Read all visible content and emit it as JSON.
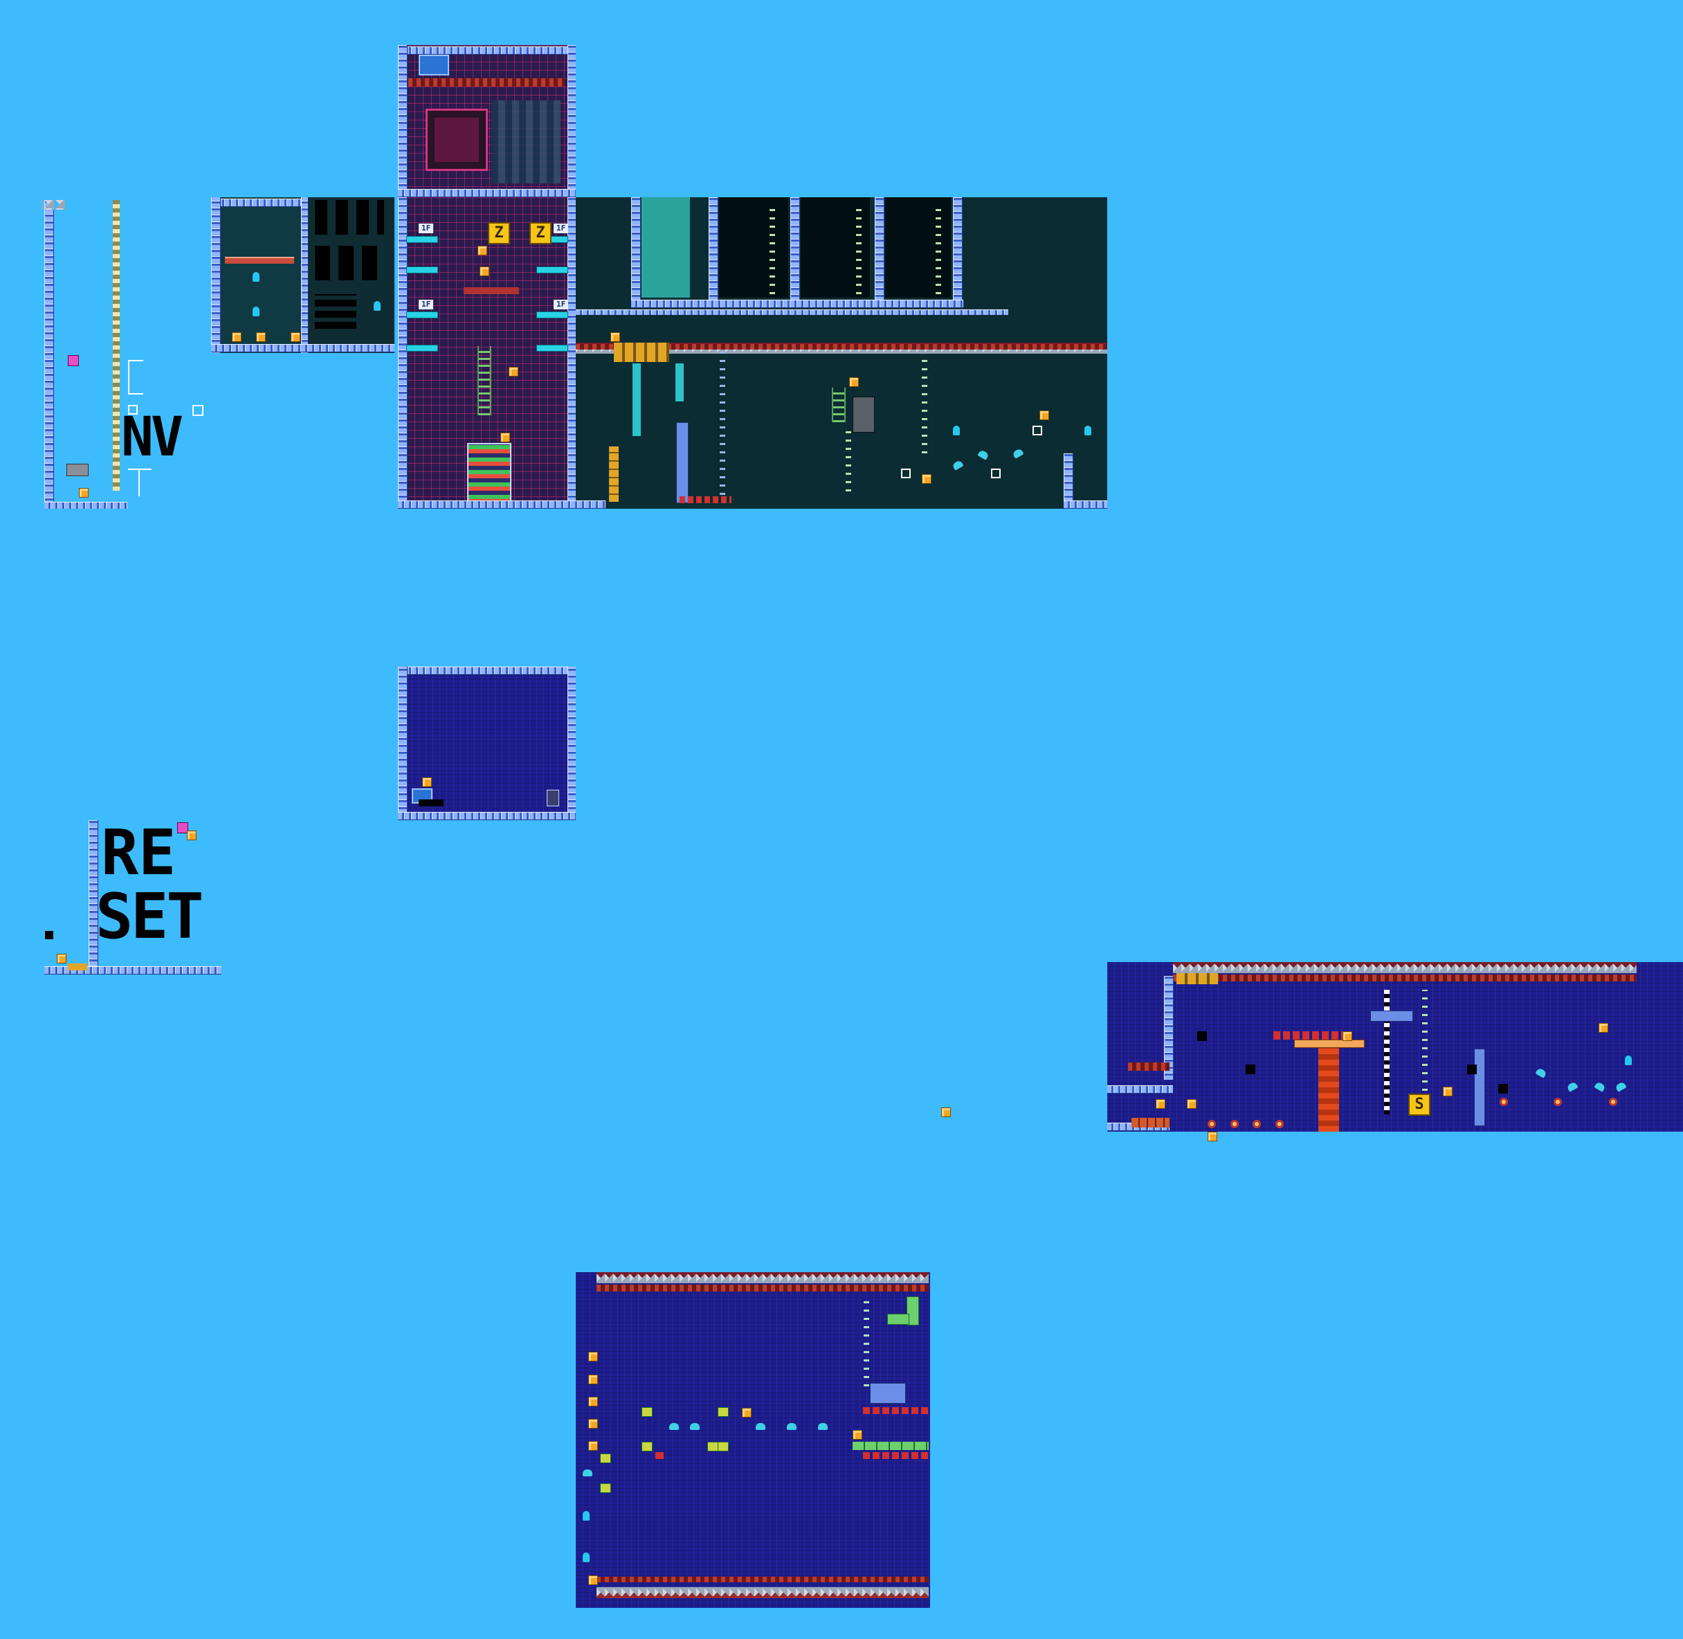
{
  "signs": {
    "nv_text": "NV",
    "reset_line1": "RE",
    "reset_line2": "SET",
    "floor_label": "1F",
    "s_block": "S",
    "z_block": "Z"
  },
  "colors": {
    "sky": "#3ebbfc",
    "wall_dark": "#0f3a43",
    "water_navy": "#1d1d8f",
    "pipe": "#8fb4ff",
    "crate": "#f5a623",
    "lava": "#e24a1e",
    "spring": "#27c8f0"
  },
  "icons": {
    "crate": "crate-icon",
    "spring": "spring-icon",
    "spike": "spike-icon",
    "enemy": "enemy-icon",
    "ring": "ring-icon",
    "player": "player-icon"
  }
}
